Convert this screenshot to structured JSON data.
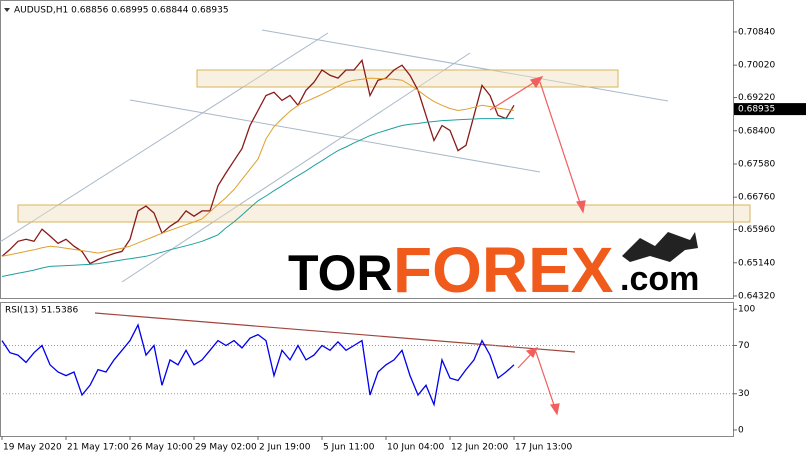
{
  "chart_data": [
    {
      "type": "line",
      "title": "AUDUSD,H1 0.68856 0.68995 0.68844 0.68935",
      "x": [
        0,
        1,
        2,
        3,
        4,
        5,
        6,
        7,
        8,
        9,
        10,
        11,
        12,
        13,
        14,
        15,
        16,
        17,
        18,
        19,
        20,
        21,
        22,
        23,
        24,
        25,
        26,
        27,
        28,
        29,
        30,
        31,
        32,
        33,
        34,
        35,
        36,
        37,
        38,
        39,
        40,
        41,
        42,
        43,
        44,
        45,
        46,
        47,
        48,
        49,
        50,
        51,
        52,
        53,
        54,
        55,
        56,
        57,
        58,
        59,
        60,
        61,
        62,
        63,
        64
      ],
      "xlim": [
        -0.25,
        91.375
      ],
      "ylim": [
        0.6427,
        0.7158
      ],
      "yticks": [
        {
          "value": 0.7084,
          "label": "0.70840"
        },
        {
          "value": 0.7002,
          "label": "0.70020"
        },
        {
          "value": 0.6922,
          "label": "0.69220"
        },
        {
          "value": 0.684,
          "label": "0.68400"
        },
        {
          "value": 0.6758,
          "label": "0.67580"
        },
        {
          "value": 0.6676,
          "label": "0.66760"
        },
        {
          "value": 0.6596,
          "label": "0.65960"
        },
        {
          "value": 0.6514,
          "label": "0.65140"
        },
        {
          "value": 0.6432,
          "label": "0.64320"
        }
      ],
      "grid": false,
      "last_price": 0.68935,
      "series": [
        {
          "color": "#8b1a1a",
          "values": [
            0.653,
            0.6547,
            0.6567,
            0.6572,
            0.6567,
            0.6597,
            0.658,
            0.6562,
            0.6572,
            0.6555,
            0.6542,
            0.6512,
            0.6522,
            0.653,
            0.6537,
            0.6542,
            0.6572,
            0.6642,
            0.6654,
            0.6637,
            0.6587,
            0.6604,
            0.6617,
            0.6642,
            0.6629,
            0.6642,
            0.6642,
            0.6704,
            0.6736,
            0.6766,
            0.6796,
            0.6853,
            0.689,
            0.6927,
            0.6935,
            0.6915,
            0.6927,
            0.6903,
            0.694,
            0.696,
            0.699,
            0.6977,
            0.697,
            0.699,
            0.699,
            0.7014,
            0.6927,
            0.6965,
            0.697,
            0.699,
            0.7002,
            0.6977,
            0.694,
            0.6878,
            0.6816,
            0.6853,
            0.6841,
            0.6791,
            0.6804,
            0.6878,
            0.6952,
            0.6927,
            0.6878,
            0.687,
            0.6903
          ]
        },
        {
          "color": "#e0a030",
          "values": [
            0.653,
            0.6534,
            0.6538,
            0.6542,
            0.6546,
            0.6551,
            0.6555,
            0.6553,
            0.655,
            0.6547,
            0.6544,
            0.6541,
            0.6538,
            0.6542,
            0.6546,
            0.655,
            0.6555,
            0.6563,
            0.6571,
            0.6579,
            0.6587,
            0.6594,
            0.6601,
            0.6608,
            0.6615,
            0.6622,
            0.664,
            0.6658,
            0.6675,
            0.6695,
            0.672,
            0.6745,
            0.677,
            0.682,
            0.685,
            0.687,
            0.6888,
            0.6903,
            0.6912,
            0.6921,
            0.693,
            0.694,
            0.695,
            0.696,
            0.6965,
            0.6967,
            0.697,
            0.6969,
            0.6968,
            0.6967,
            0.6965,
            0.6953,
            0.694,
            0.6925,
            0.6912,
            0.6903,
            0.6895,
            0.689,
            0.6893,
            0.6898,
            0.6903,
            0.69,
            0.6896,
            0.6893,
            0.689
          ]
        },
        {
          "color": "#20a0a0",
          "values": [
            0.648,
            0.6484,
            0.6488,
            0.6492,
            0.6496,
            0.6501,
            0.6505,
            0.6506,
            0.6507,
            0.6508,
            0.6509,
            0.651,
            0.6512,
            0.6515,
            0.6518,
            0.6521,
            0.6524,
            0.6527,
            0.653,
            0.6535,
            0.654,
            0.6546,
            0.6551,
            0.6556,
            0.6561,
            0.6567,
            0.6575,
            0.6583,
            0.66,
            0.6615,
            0.6632,
            0.665,
            0.6667,
            0.6679,
            0.6692,
            0.6704,
            0.6717,
            0.6729,
            0.6741,
            0.6754,
            0.6766,
            0.6779,
            0.6791,
            0.68,
            0.681,
            0.6819,
            0.6828,
            0.6835,
            0.6841,
            0.6847,
            0.6853,
            0.6856,
            0.6858,
            0.6861,
            0.6863,
            0.6865,
            0.6866,
            0.6867,
            0.6868,
            0.6869,
            0.687,
            0.687,
            0.687,
            0.687,
            0.687
          ]
        }
      ]
    },
    {
      "type": "line",
      "title": "RSI(13) 51.5386",
      "x": [
        0,
        1,
        2,
        3,
        4,
        5,
        6,
        7,
        8,
        9,
        10,
        11,
        12,
        13,
        14,
        15,
        16,
        17,
        18,
        19,
        20,
        21,
        22,
        23,
        24,
        25,
        26,
        27,
        28,
        29,
        30,
        31,
        32,
        33,
        34,
        35,
        36,
        37,
        38,
        39,
        40,
        41,
        42,
        43,
        44,
        45,
        46,
        47,
        48,
        49,
        50,
        51,
        52,
        53,
        54,
        55,
        56,
        57,
        58,
        59,
        60,
        61,
        62,
        63,
        64
      ],
      "xlim": [
        -0.25,
        91.375
      ],
      "ylim": [
        -5,
        106
      ],
      "yticks": [
        100,
        70,
        30,
        0
      ],
      "grid": true,
      "xticks": [
        {
          "value": 0,
          "label": "19 May 2020"
        },
        {
          "value": 8,
          "label": "21 May 17:00"
        },
        {
          "value": 16,
          "label": "26 May 10:00"
        },
        {
          "value": 24,
          "label": "29 May 02:00"
        },
        {
          "value": 32,
          "label": "2 Jun 19:00"
        },
        {
          "value": 40,
          "label": "5 Jun 11:00"
        },
        {
          "value": 48,
          "label": "10 Jun 04:00"
        },
        {
          "value": 56,
          "label": "12 Jun 20:00"
        },
        {
          "value": 64,
          "label": "17 Jun 13:00"
        }
      ],
      "series": [
        {
          "color": "#0000ee",
          "values": [
            74,
            64,
            62,
            56,
            64,
            70,
            54,
            48,
            45,
            48,
            29,
            37,
            50,
            48,
            58,
            66,
            74,
            87,
            62,
            70,
            37,
            58,
            54,
            66,
            54,
            58,
            66,
            74,
            70,
            74,
            68,
            76,
            79,
            74,
            45,
            66,
            58,
            70,
            58,
            62,
            70,
            66,
            73,
            66,
            70,
            74,
            29,
            48,
            54,
            58,
            66,
            45,
            29,
            37,
            21,
            58,
            43,
            41,
            50,
            58,
            74,
            62,
            43,
            48,
            54
          ]
        }
      ]
    }
  ],
  "watermark": {
    "part1": "TOR",
    "part2": "FOREX",
    "part3": ".com"
  }
}
